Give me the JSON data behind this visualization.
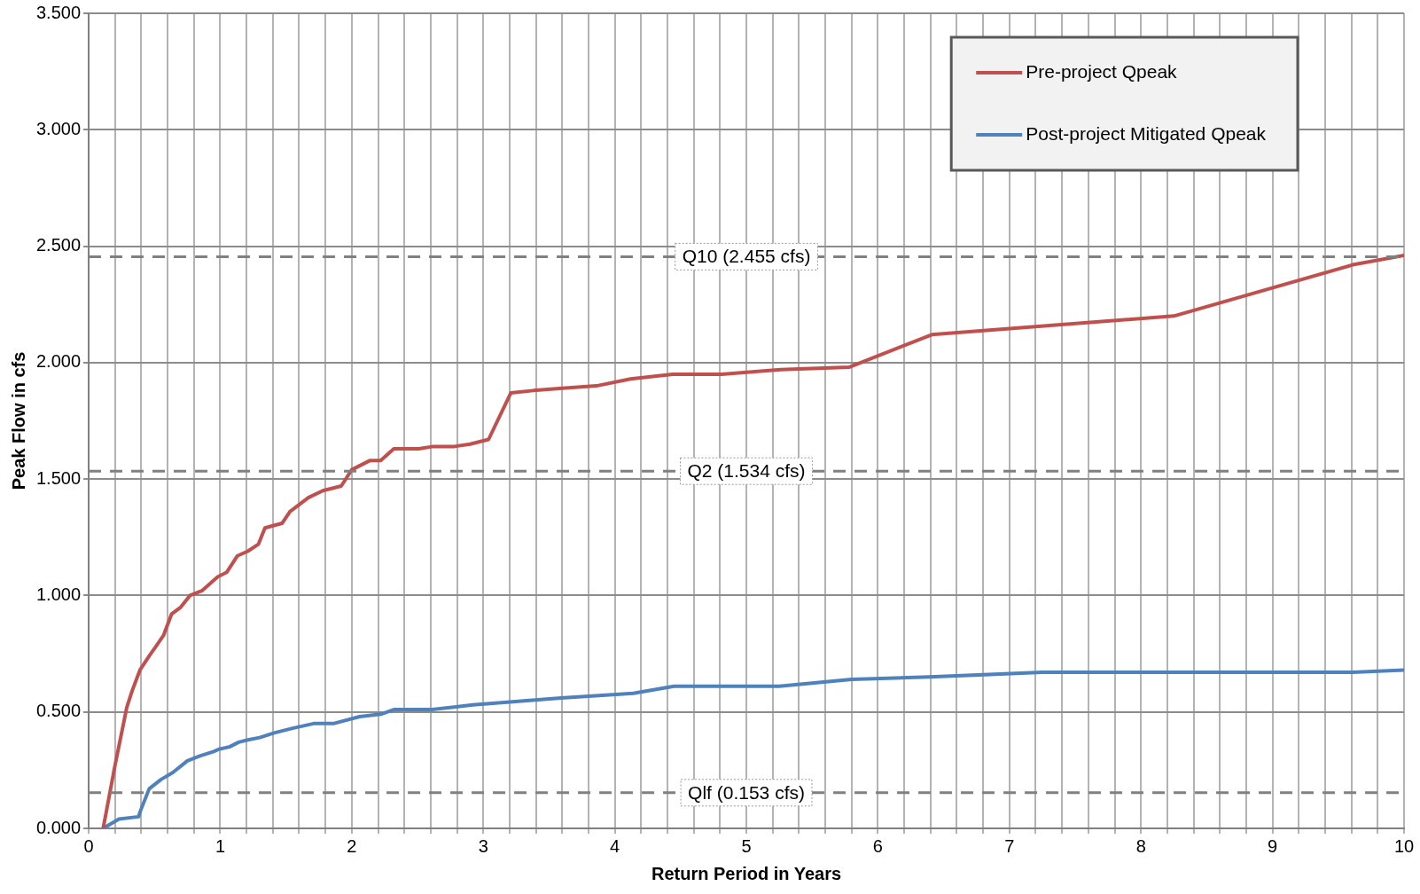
{
  "chart_data": {
    "type": "line",
    "xlabel": "Return Period in Years",
    "ylabel": "Peak Flow in cfs",
    "xlim": [
      0,
      10
    ],
    "ylim": [
      0,
      3.5
    ],
    "xticks": [
      0,
      {
        "value": 0.2,
        "label": null
      },
      {
        "value": 0.4,
        "label": null
      },
      {
        "value": 0.6,
        "label": null
      },
      {
        "value": 0.8,
        "label": null
      },
      1,
      {
        "value": 1.2,
        "label": null
      },
      {
        "value": 1.4,
        "label": null
      },
      {
        "value": 1.6,
        "label": null
      },
      {
        "value": 1.8,
        "label": null
      },
      2,
      {
        "value": 2.2,
        "label": null
      },
      {
        "value": 2.4,
        "label": null
      },
      {
        "value": 2.6,
        "label": null
      },
      {
        "value": 2.8,
        "label": null
      },
      3,
      {
        "value": 3.2,
        "label": null
      },
      {
        "value": 3.4,
        "label": null
      },
      {
        "value": 3.6,
        "label": null
      },
      {
        "value": 3.8,
        "label": null
      },
      4,
      {
        "value": 4.2,
        "label": null
      },
      {
        "value": 4.4,
        "label": null
      },
      {
        "value": 4.6,
        "label": null
      },
      {
        "value": 4.8,
        "label": null
      },
      5,
      {
        "value": 5.2,
        "label": null
      },
      {
        "value": 5.4,
        "label": null
      },
      {
        "value": 5.6,
        "label": null
      },
      {
        "value": 5.8,
        "label": null
      },
      6,
      {
        "value": 6.2,
        "label": null
      },
      {
        "value": 6.4,
        "label": null
      },
      {
        "value": 6.6,
        "label": null
      },
      {
        "value": 6.8,
        "label": null
      },
      7,
      {
        "value": 7.2,
        "label": null
      },
      {
        "value": 7.4,
        "label": null
      },
      {
        "value": 7.6,
        "label": null
      },
      {
        "value": 7.8,
        "label": null
      },
      8,
      {
        "value": 8.2,
        "label": null
      },
      {
        "value": 8.4,
        "label": null
      },
      {
        "value": 8.6,
        "label": null
      },
      {
        "value": 8.8,
        "label": null
      },
      9,
      {
        "value": 9.2,
        "label": null
      },
      {
        "value": 9.4,
        "label": null
      },
      {
        "value": 9.6,
        "label": null
      },
      {
        "value": 9.8,
        "label": null
      },
      10
    ],
    "yticks": [
      {
        "value": 0,
        "label": "0.000"
      },
      {
        "value": 0.5,
        "label": "0.500"
      },
      {
        "value": 1,
        "label": "1.000"
      },
      {
        "value": 1.5,
        "label": "1.500"
      },
      {
        "value": 2,
        "label": "2.000"
      },
      {
        "value": 2.5,
        "label": "2.500"
      },
      {
        "value": 3,
        "label": "3.000"
      },
      {
        "value": 3.5,
        "label": "3.500"
      }
    ],
    "grid": true,
    "legend": "top right",
    "marker": "none",
    "line_style": "solid",
    "series": [
      {
        "name": "Pre-project Qpeak",
        "color": "#c0504d",
        "x": [
          0.11,
          0.2,
          0.29,
          0.33,
          0.39,
          0.46,
          0.51,
          0.57,
          0.63,
          0.7,
          0.77,
          0.86,
          0.98,
          1.05,
          1.13,
          1.21,
          1.29,
          1.34,
          1.47,
          1.53,
          1.67,
          1.78,
          1.92,
          2.0,
          2.14,
          2.22,
          2.32,
          2.51,
          2.62,
          2.78,
          2.9,
          3.04,
          3.21,
          3.38,
          3.6,
          3.86,
          4.12,
          4.44,
          4.81,
          5.26,
          5.78,
          6.41,
          8.25,
          9.61,
          10
        ],
        "values": [
          0,
          0.27,
          0.52,
          0.59,
          0.68,
          0.74,
          0.78,
          0.83,
          0.92,
          0.95,
          1.0,
          1.02,
          1.08,
          1.1,
          1.17,
          1.19,
          1.22,
          1.29,
          1.31,
          1.36,
          1.42,
          1.45,
          1.47,
          1.54,
          1.58,
          1.58,
          1.63,
          1.63,
          1.64,
          1.64,
          1.65,
          1.67,
          1.87,
          1.88,
          1.89,
          1.9,
          1.93,
          1.95,
          1.95,
          1.97,
          1.98,
          2.12,
          2.2,
          2.42,
          2.46
        ]
      },
      {
        "name": "Post-project Mitigated Qpeak",
        "color": "#4f81bd",
        "x": [
          0.11,
          0.23,
          0.38,
          0.39,
          0.46,
          0.55,
          0.64,
          0.75,
          0.84,
          0.95,
          0.99,
          1.07,
          1.14,
          1.21,
          1.3,
          1.41,
          1.55,
          1.71,
          1.86,
          2.06,
          2.22,
          2.32,
          2.61,
          2.92,
          3.59,
          4.14,
          4.45,
          5.25,
          5.8,
          6.39,
          7.25,
          9.61,
          10
        ],
        "values": [
          0,
          0.04,
          0.05,
          0.07,
          0.17,
          0.21,
          0.24,
          0.29,
          0.31,
          0.33,
          0.34,
          0.35,
          0.37,
          0.38,
          0.39,
          0.41,
          0.43,
          0.45,
          0.45,
          0.48,
          0.49,
          0.51,
          0.51,
          0.53,
          0.56,
          0.58,
          0.61,
          0.61,
          0.64,
          0.65,
          0.67,
          0.67,
          0.68
        ]
      }
    ],
    "ref_lines": [
      {
        "axis": "y",
        "value": 2.455,
        "label": "Q10 (2.455 cfs)",
        "color": "#808080",
        "line_style": "dashed"
      },
      {
        "axis": "y",
        "value": 1.534,
        "label": "Q2 (1.534 cfs)",
        "color": "#808080",
        "line_style": "dashed"
      },
      {
        "axis": "y",
        "value": 0.153,
        "label": "Qlf (0.153 cfs)",
        "color": "#808080",
        "line_style": "dashed"
      }
    ]
  }
}
